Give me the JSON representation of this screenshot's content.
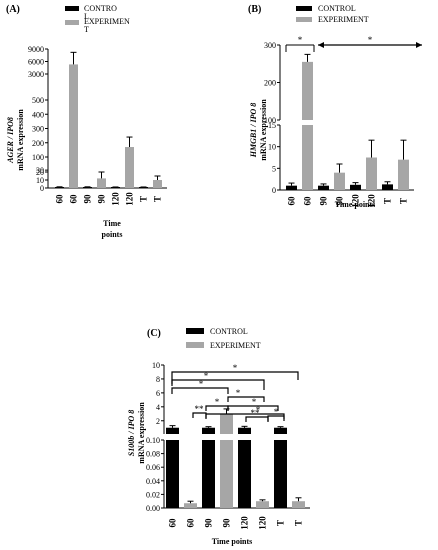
{
  "colors": {
    "control": "#000000",
    "experiment": "#a6a6a6",
    "error_bar": "#000000"
  },
  "chart_data": [
    {
      "panel_label": "(A)",
      "type": "bar",
      "ylabel_gene": "AGER / IPO8",
      "ylabel_rest": "mRNA expression",
      "xlabel_line1": "Time",
      "xlabel_line2": "points",
      "legend": {
        "control": "CONTRO L",
        "experiment": "EXPERIMEN T",
        "placement": "top"
      },
      "categories": [
        "60",
        "60",
        "90",
        "90",
        "120",
        "120",
        "T",
        "T"
      ],
      "groups": [
        "control",
        "experiment",
        "control",
        "experiment",
        "control",
        "experiment",
        "control",
        "experiment"
      ],
      "values": [
        1,
        5300,
        1,
        12,
        1,
        170,
        1,
        10
      ],
      "errors": [
        0.5,
        2900,
        0.5,
        8,
        0.3,
        70,
        0.3,
        5
      ],
      "axis_segments": [
        {
          "range": [
            0,
            20
          ],
          "ticks": [
            "0",
            "10",
            "20"
          ],
          "tick_values": [
            0,
            10,
            20
          ]
        },
        {
          "range": [
            20,
            100
          ],
          "ticks": [
            "30",
            "100"
          ],
          "tick_values": [
            30,
            100
          ]
        },
        {
          "range": [
            100,
            500
          ],
          "ticks": [
            "200",
            "300",
            "400",
            "500"
          ],
          "tick_values": [
            200,
            300,
            400,
            500
          ]
        },
        {
          "range": [
            500,
            3000
          ],
          "ticks": [
            "3000"
          ],
          "tick_values": [
            3000
          ]
        },
        {
          "range": [
            3000,
            9000
          ],
          "ticks": [
            "6000",
            "9000"
          ],
          "tick_values": [
            6000,
            9000
          ]
        }
      ]
    },
    {
      "panel_label": "(B)",
      "type": "bar",
      "ylabel_gene": "HMGB1 / IPO 8",
      "ylabel_rest": "mRNA expression",
      "xlabel": "Time points",
      "legend": {
        "control": "CONTROL",
        "experiment": "EXPERIMENT",
        "placement": "top"
      },
      "categories": [
        "60",
        "60",
        "90",
        "90",
        "120",
        "120",
        "T",
        "T"
      ],
      "groups": [
        "control",
        "experiment",
        "control",
        "experiment",
        "control",
        "experiment",
        "control",
        "experiment"
      ],
      "values": [
        1,
        255,
        1,
        4,
        1.2,
        7.5,
        1.3,
        7
      ],
      "errors": [
        0.6,
        20,
        0.4,
        2,
        0.5,
        4,
        0.6,
        4.5
      ],
      "axis_segments": [
        {
          "range": [
            0,
            15
          ],
          "ticks": [
            "0",
            "5",
            "10",
            "15"
          ],
          "tick_values": [
            0,
            5,
            10,
            15
          ]
        },
        {
          "range": [
            100,
            300
          ],
          "ticks": [
            "100",
            "200",
            "300"
          ],
          "tick_values": [
            100,
            200,
            300
          ]
        }
      ],
      "annotations": [
        {
          "text": "*"
        },
        {
          "text": "*"
        }
      ]
    },
    {
      "panel_label": "(C)",
      "type": "bar",
      "ylabel_gene": "S100b / IPO 8",
      "ylabel_rest": "mRNA expression",
      "xlabel": "Time points",
      "legend": {
        "control": "CONTROL",
        "experiment": "EXPERIMENT",
        "placement": "top"
      },
      "categories": [
        "60",
        "60",
        "90",
        "90",
        "120",
        "120",
        "T",
        "T"
      ],
      "groups": [
        "control",
        "experiment",
        "control",
        "experiment",
        "control",
        "experiment",
        "control",
        "experiment"
      ],
      "values": [
        1,
        0.007,
        1,
        3,
        1,
        0.01,
        1,
        0.01
      ],
      "errors": [
        0.3,
        0.003,
        0.15,
        0.7,
        0.2,
        0.002,
        0.15,
        0.005
      ],
      "axis_segments": [
        {
          "range": [
            0,
            0.1
          ],
          "ticks": [
            "0.00",
            "0.02",
            "0.04",
            "0.06",
            "0.08",
            "0.10"
          ],
          "tick_values": [
            0,
            0.02,
            0.04,
            0.06,
            0.08,
            0.1
          ]
        },
        {
          "range": [
            0.1,
            10
          ],
          "ticks": [
            "2",
            "4",
            "6",
            "8",
            "10"
          ],
          "tick_values": [
            2,
            4,
            6,
            8,
            10
          ]
        }
      ],
      "annotations": [
        {
          "text": "*"
        },
        {
          "text": "*"
        },
        {
          "text": "*"
        },
        {
          "text": "*"
        },
        {
          "text": "*"
        },
        {
          "text": "*"
        },
        {
          "text": "*"
        },
        {
          "text": "**"
        },
        {
          "text": "**"
        },
        {
          "text": "*"
        }
      ]
    }
  ]
}
